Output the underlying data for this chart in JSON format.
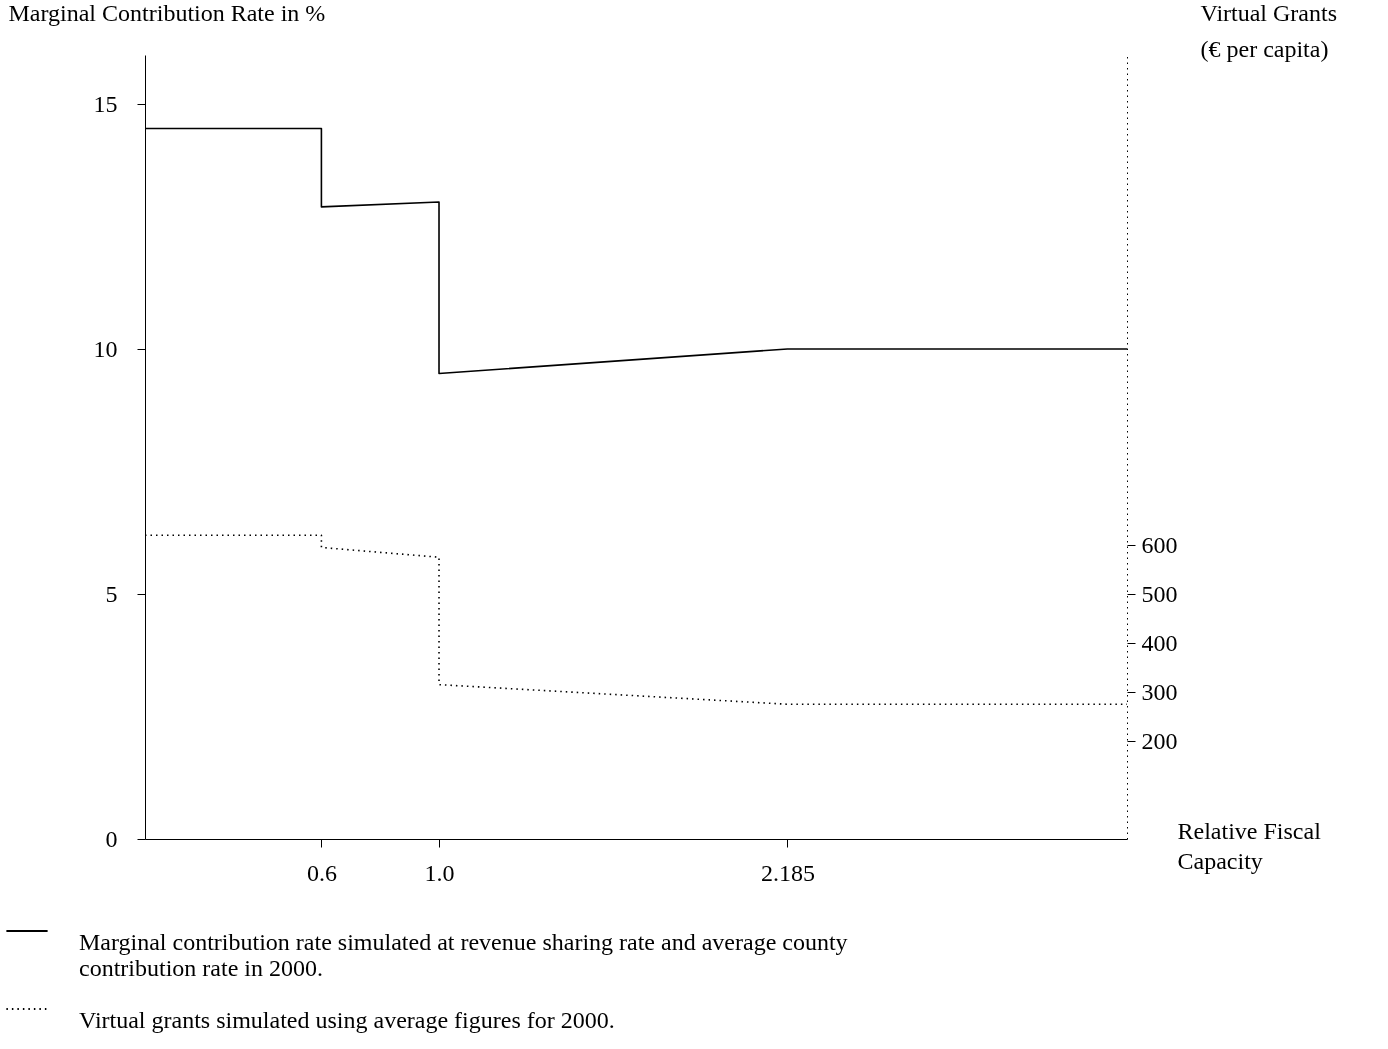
{
  "chart_data": {
    "type": "line",
    "xlabel": "Relative Fiscal Capacity",
    "ylabel": "Marginal Contribution Rate in %",
    "y2label": "Virtual Grants (€ per capita)",
    "xlim": [
      0,
      3.34
    ],
    "xticks": [
      0.6,
      {
        "value": 1,
        "label": "1.0"
      },
      2.185
    ],
    "ylim": [
      0,
      16
    ],
    "yticks": [
      0,
      5,
      10,
      15
    ],
    "y2lim": [
      0,
      1600
    ],
    "y2ticks": [
      200,
      300,
      400,
      500,
      600
    ],
    "grid": false,
    "legend": "bottom",
    "marker": "none",
    "series": [
      {
        "name": "Marginal contribution rate simulated at revenue sharing rate and average county contribution rate in 2000.",
        "color": "#000000",
        "line_style": "solid",
        "x": [
          0,
          0.6,
          0.6,
          1,
          1,
          2.185,
          3.34
        ],
        "values": [
          14.5,
          14.5,
          12.9,
          13.0,
          9.5,
          10.0,
          10.0
        ]
      },
      {
        "name": "Virtual grants simulated using average figures for 2000.",
        "color": "#000000",
        "line_style": "dotted",
        "axis": "y2",
        "x": [
          0,
          0.6,
          0.6,
          1,
          1,
          2.185,
          3.34
        ],
        "values": [
          620,
          620,
          595,
          575,
          315,
          275,
          275
        ]
      }
    ]
  }
}
